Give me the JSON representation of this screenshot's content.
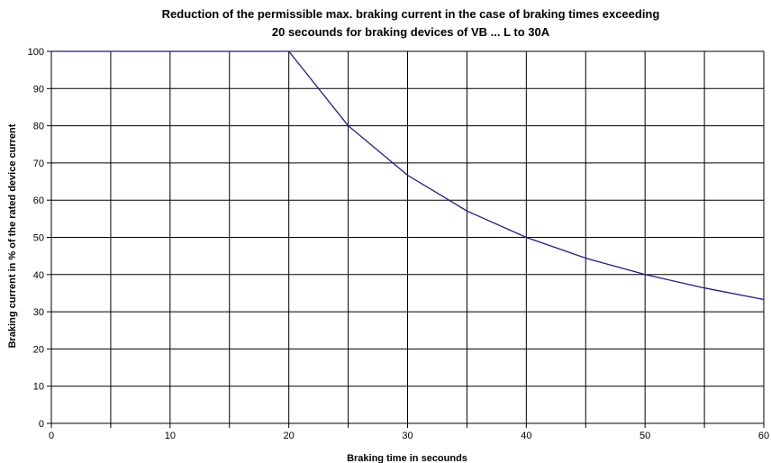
{
  "chart_data": {
    "type": "line",
    "title_line1": "Reduction of the permissible max. braking current in the case of braking times exceeding",
    "title_line2": "20 secounds for braking devices of VB ... L to 30A",
    "xlabel": "Braking time in secounds",
    "ylabel": "Braking current in % of the rated device current",
    "xlim": [
      0,
      60
    ],
    "ylim": [
      0,
      100
    ],
    "x_ticks": [
      0,
      10,
      20,
      30,
      40,
      50,
      60
    ],
    "x_grid": [
      0,
      5,
      10,
      15,
      20,
      25,
      30,
      35,
      40,
      45,
      50,
      55,
      60
    ],
    "y_ticks": [
      0,
      10,
      20,
      30,
      40,
      50,
      60,
      70,
      80,
      90,
      100
    ],
    "grid": true,
    "series": [
      {
        "color": "#1f1a8a",
        "x": [
          0,
          20,
          25,
          30,
          35,
          40,
          45,
          50,
          55,
          60
        ],
        "y": [
          100,
          100,
          80,
          66.7,
          57.1,
          50,
          44.4,
          40,
          36.4,
          33.3
        ]
      }
    ]
  }
}
